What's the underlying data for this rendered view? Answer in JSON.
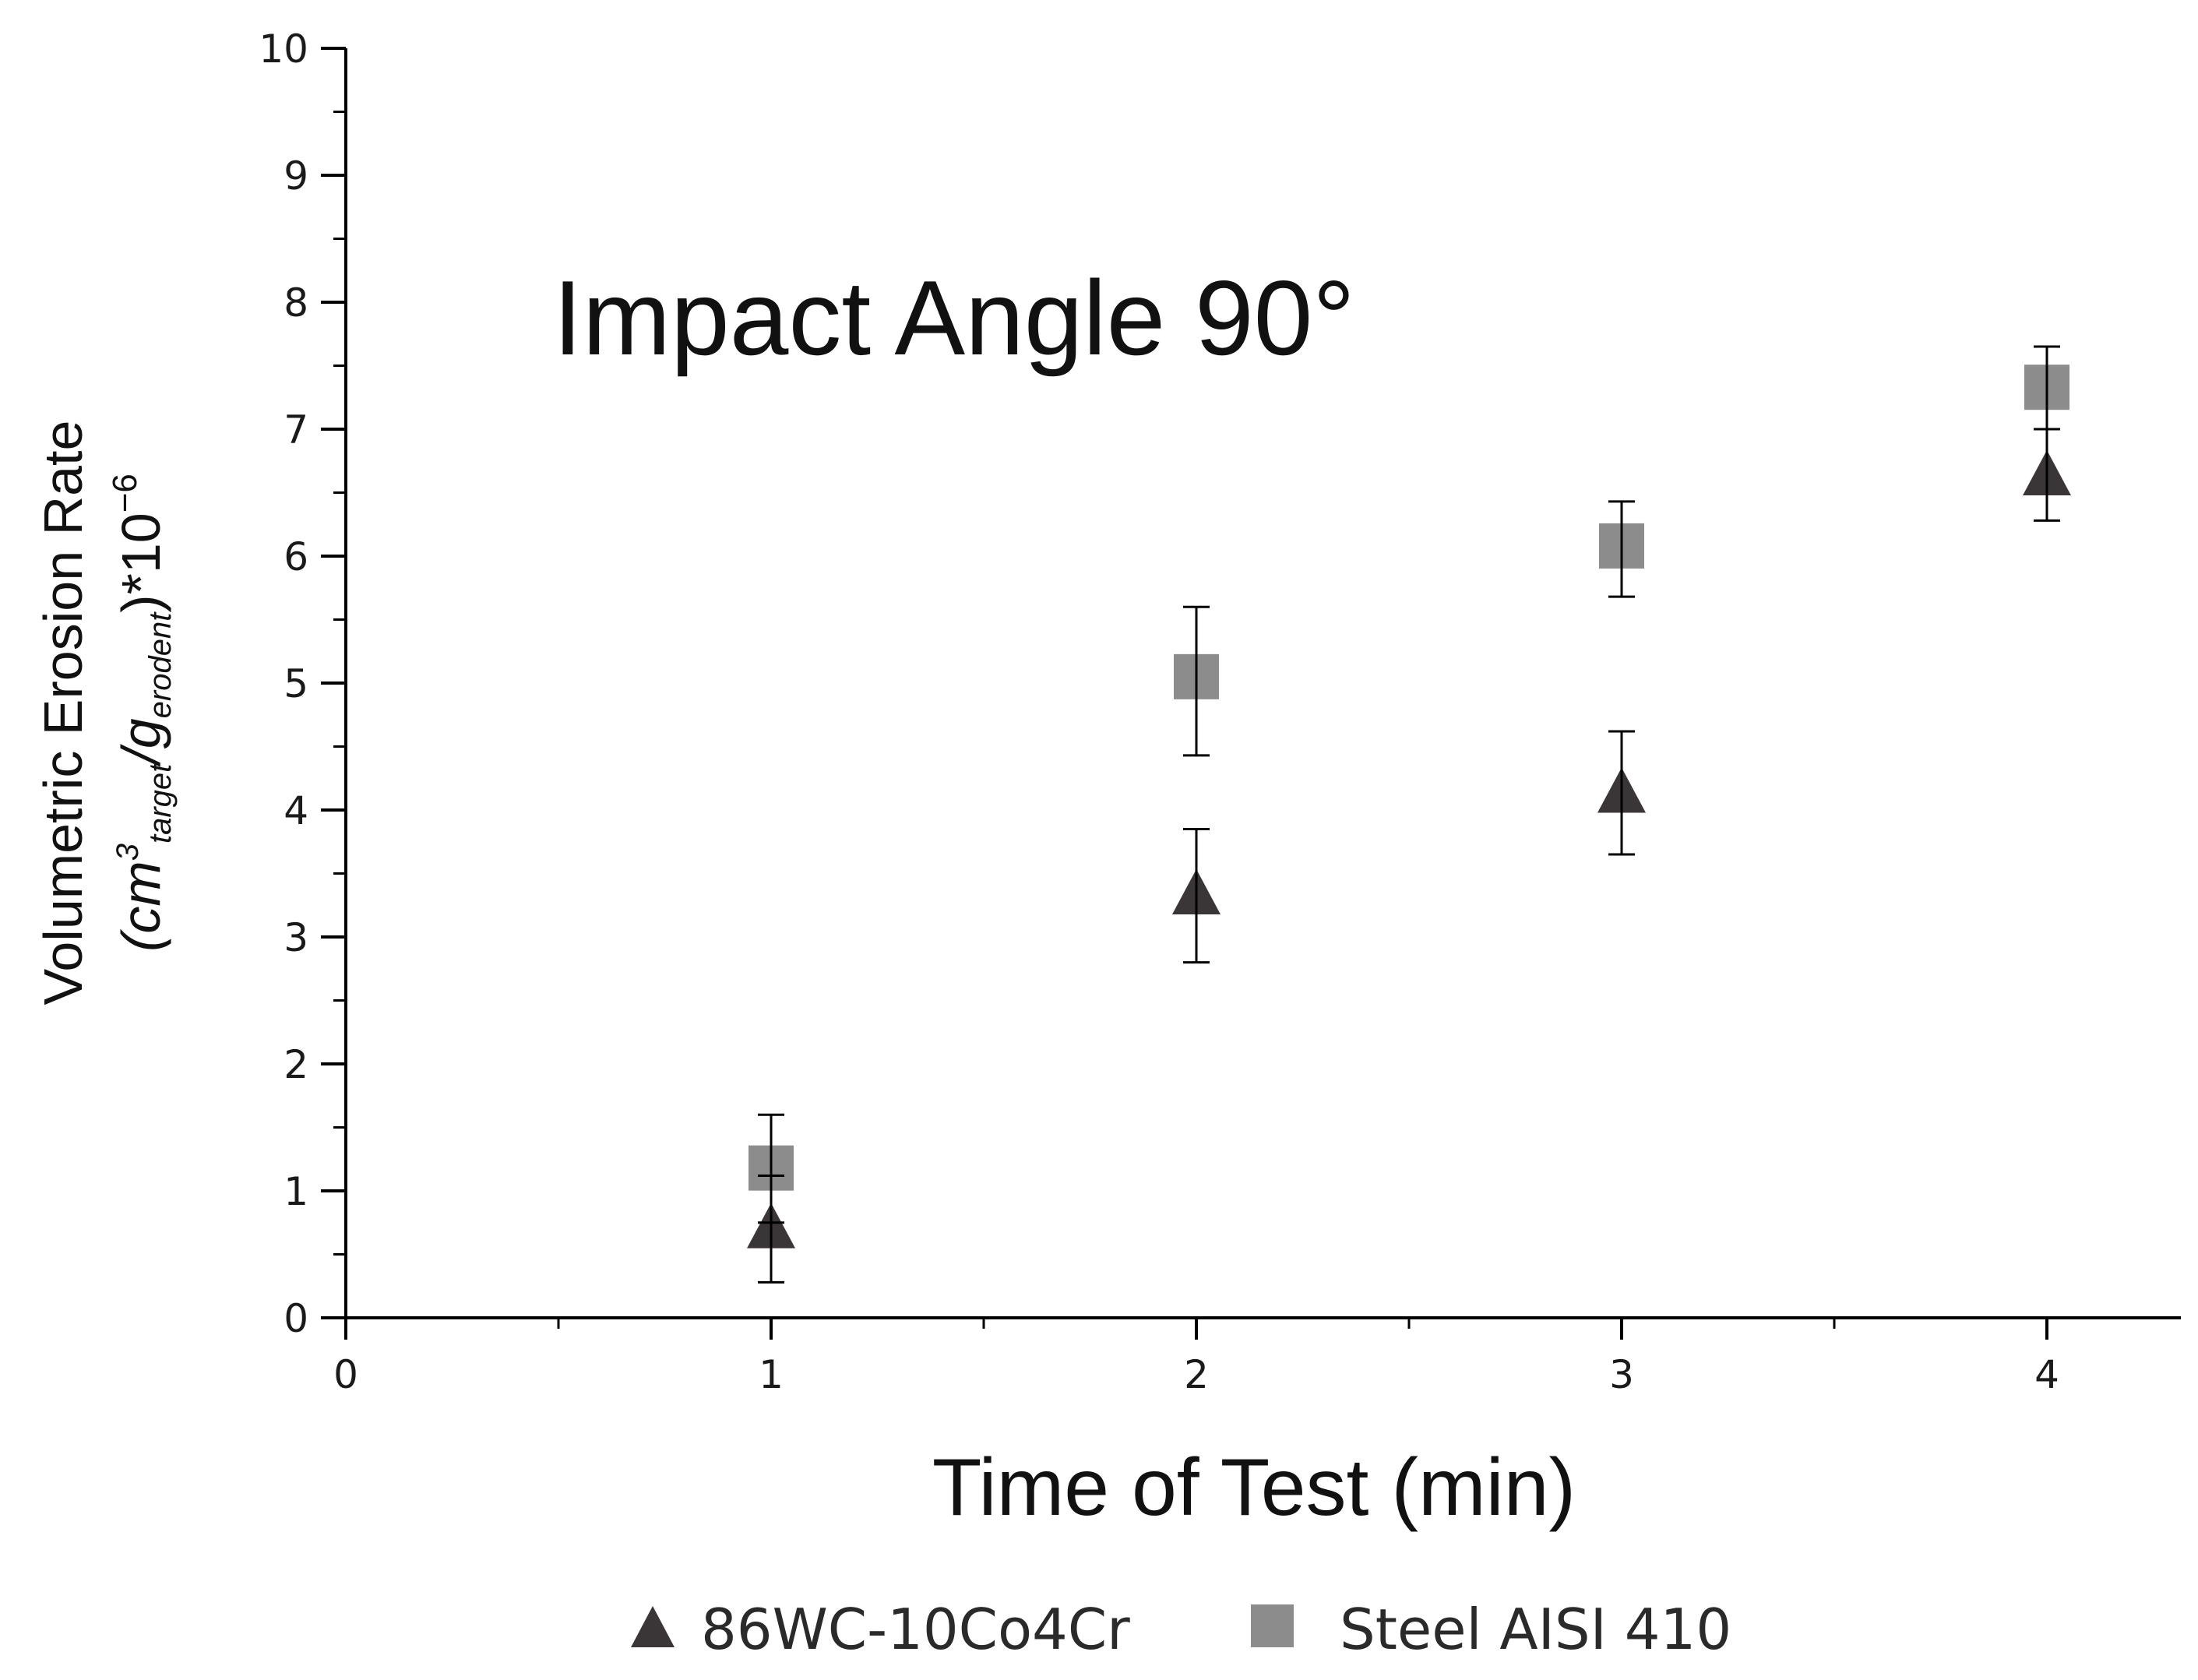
{
  "chart_data": {
    "type": "scatter",
    "title": "",
    "annotation": "Impact Angle 90°",
    "xlabel": "Time of Test (min)",
    "ylabel": {
      "line1": "Volumetric Erosion Rate",
      "open": "(cm",
      "sup": "3",
      "sub1": "target",
      "slash": "/g",
      "sub2": "erodent",
      "close": ")*10",
      "exp": "−6"
    },
    "xlim": [
      0,
      4.3
    ],
    "ylim": [
      0,
      10
    ],
    "x_ticks": [
      "0",
      "1",
      "2",
      "3",
      "4"
    ],
    "y_ticks": [
      "0",
      "1",
      "2",
      "3",
      "4",
      "5",
      "6",
      "7",
      "8",
      "9",
      "10"
    ],
    "grid": false,
    "legend_position": "bottom-center",
    "series": [
      {
        "name": "86WC-10Co4Cr",
        "marker": "triangle",
        "color": "#3a3536",
        "x": [
          1,
          2,
          3,
          4
        ],
        "y": [
          0.72,
          3.35,
          4.15,
          6.65
        ],
        "err_low": [
          0.28,
          2.8,
          3.65,
          6.28
        ],
        "err_high": [
          1.12,
          3.85,
          4.62,
          7.0
        ]
      },
      {
        "name": "Steel AISI 410",
        "marker": "square",
        "color": "#8c8c8c",
        "x": [
          1,
          2,
          3,
          4
        ],
        "y": [
          1.18,
          5.05,
          6.08,
          7.33
        ],
        "err_low": [
          0.75,
          4.43,
          5.68,
          7.0
        ],
        "err_high": [
          1.6,
          5.6,
          6.43,
          7.65
        ]
      }
    ]
  }
}
